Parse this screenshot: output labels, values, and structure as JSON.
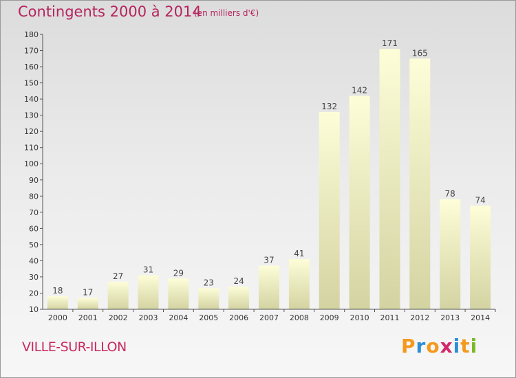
{
  "header": {
    "title": "Contingents 2000 à 2014",
    "subtitle": "(en milliers d'€)"
  },
  "footer": {
    "place": "VILLE-SUR-ILLON",
    "logo": {
      "text": "Proxiti",
      "letters": [
        {
          "char": "P",
          "color": "#f39a1e"
        },
        {
          "char": "r",
          "color": "#2a8fd4"
        },
        {
          "char": "o",
          "color": "#f39a1e"
        },
        {
          "char": "x",
          "color": "#d2286a"
        },
        {
          "char": "i",
          "color": "#2a8fd4"
        },
        {
          "char": "t",
          "color": "#f39a1e"
        },
        {
          "char": "i",
          "color": "#7cb928"
        }
      ]
    }
  },
  "chart_data": {
    "type": "bar",
    "categories": [
      "2000",
      "2001",
      "2002",
      "2003",
      "2004",
      "2005",
      "2006",
      "2007",
      "2008",
      "2009",
      "2010",
      "2011",
      "2012",
      "2013",
      "2014"
    ],
    "values": [
      18,
      17,
      27,
      31,
      29,
      23,
      24,
      37,
      41,
      132,
      142,
      171,
      165,
      78,
      74
    ],
    "ylim": [
      10,
      180
    ],
    "yticks": [
      10,
      20,
      30,
      40,
      50,
      60,
      70,
      80,
      90,
      100,
      110,
      120,
      130,
      140,
      150,
      160,
      170,
      180
    ],
    "grid": false,
    "colors": {
      "bar_top": "#fdfdd8",
      "bar_bottom": "#d3d3a2",
      "axis": "#555555"
    }
  }
}
